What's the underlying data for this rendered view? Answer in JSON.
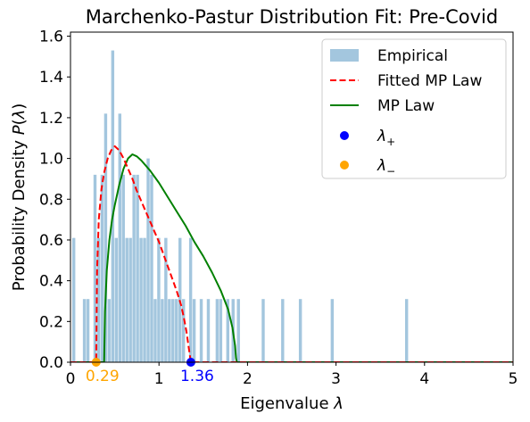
{
  "chart_data": {
    "type": "bar",
    "title": "Marchenko-Pastur Distribution Fit: Pre-Covid",
    "xlabel": "Eigenvalue λ",
    "ylabel": "Probability Density P(λ)",
    "xlim": [
      0,
      5
    ],
    "ylim": [
      0,
      1.62
    ],
    "x_ticks": [
      "0",
      "1",
      "2",
      "3",
      "4",
      "5"
    ],
    "y_ticks": [
      "0.0",
      "0.2",
      "0.4",
      "0.6",
      "0.8",
      "1.0",
      "1.2",
      "1.4",
      "1.6"
    ],
    "grid": false,
    "legend_position": "top-right",
    "colors": {
      "empirical": "#a3c6de",
      "fitted": "#ff0000",
      "mp": "#008000",
      "lambda_plus": "#0000ff",
      "lambda_minus": "#ffa500"
    },
    "legend": [
      {
        "label": "Empirical",
        "kind": "patch",
        "color": "#a3c6de"
      },
      {
        "label": "Fitted MP Law",
        "kind": "dashed",
        "color": "#ff0000"
      },
      {
        "label": "MP Law",
        "kind": "solid",
        "color": "#008000"
      },
      {
        "label": "λ+",
        "base": "λ",
        "sub": "+",
        "kind": "dot",
        "color": "#0000ff"
      },
      {
        "label": "λ−",
        "base": "λ",
        "sub": "−",
        "kind": "dot",
        "color": "#ffa500"
      }
    ],
    "bin_width": 0.0405,
    "histogram": [
      [
        0.02,
        0.61
      ],
      [
        0.14,
        0.31
      ],
      [
        0.18,
        0.31
      ],
      [
        0.26,
        0.92
      ],
      [
        0.3,
        0.61
      ],
      [
        0.34,
        0.92
      ],
      [
        0.38,
        1.22
      ],
      [
        0.42,
        0.31
      ],
      [
        0.46,
        1.53
      ],
      [
        0.5,
        0.61
      ],
      [
        0.54,
        1.22
      ],
      [
        0.58,
        0.92
      ],
      [
        0.62,
        0.61
      ],
      [
        0.66,
        0.61
      ],
      [
        0.7,
        0.92
      ],
      [
        0.74,
        0.92
      ],
      [
        0.78,
        0.61
      ],
      [
        0.82,
        0.61
      ],
      [
        0.86,
        1.0
      ],
      [
        0.9,
        0.92
      ],
      [
        0.94,
        0.31
      ],
      [
        0.98,
        0.61
      ],
      [
        1.02,
        0.31
      ],
      [
        1.06,
        0.61
      ],
      [
        1.1,
        0.31
      ],
      [
        1.14,
        0.31
      ],
      [
        1.18,
        0.31
      ],
      [
        1.22,
        0.61
      ],
      [
        1.26,
        0.31
      ],
      [
        1.34,
        0.61
      ],
      [
        1.38,
        0.31
      ],
      [
        1.46,
        0.31
      ],
      [
        1.54,
        0.31
      ],
      [
        1.64,
        0.31
      ],
      [
        1.68,
        0.31
      ],
      [
        1.76,
        0.31
      ],
      [
        1.82,
        0.31
      ],
      [
        1.88,
        0.31
      ],
      [
        2.16,
        0.31
      ],
      [
        2.38,
        0.31
      ],
      [
        2.58,
        0.31
      ],
      [
        2.94,
        0.31
      ],
      [
        3.78,
        0.31
      ]
    ],
    "fitted_mp_law": {
      "lambda_minus": 0.29,
      "lambda_plus": 1.36,
      "points": [
        [
          0.0,
          0.0
        ],
        [
          0.29,
          0.0
        ],
        [
          0.3,
          0.45
        ],
        [
          0.32,
          0.7
        ],
        [
          0.35,
          0.85
        ],
        [
          0.38,
          0.93
        ],
        [
          0.42,
          1.0
        ],
        [
          0.46,
          1.04
        ],
        [
          0.5,
          1.06
        ],
        [
          0.55,
          1.04
        ],
        [
          0.6,
          1.0
        ],
        [
          0.65,
          0.95
        ],
        [
          0.7,
          0.9
        ],
        [
          0.75,
          0.84
        ],
        [
          0.8,
          0.79
        ],
        [
          0.85,
          0.74
        ],
        [
          0.9,
          0.69
        ],
        [
          0.95,
          0.64
        ],
        [
          1.0,
          0.59
        ],
        [
          1.05,
          0.53
        ],
        [
          1.1,
          0.47
        ],
        [
          1.15,
          0.41
        ],
        [
          1.2,
          0.35
        ],
        [
          1.25,
          0.28
        ],
        [
          1.28,
          0.22
        ],
        [
          1.31,
          0.15
        ],
        [
          1.33,
          0.09
        ],
        [
          1.35,
          0.03
        ],
        [
          1.36,
          0.0
        ],
        [
          5.0,
          0.0
        ]
      ]
    },
    "mp_law": {
      "points": [
        [
          0.0,
          0.0
        ],
        [
          0.38,
          0.0
        ],
        [
          0.39,
          0.25
        ],
        [
          0.41,
          0.45
        ],
        [
          0.44,
          0.6
        ],
        [
          0.47,
          0.7
        ],
        [
          0.5,
          0.77
        ],
        [
          0.55,
          0.87
        ],
        [
          0.6,
          0.95
        ],
        [
          0.65,
          1.0
        ],
        [
          0.7,
          1.02
        ],
        [
          0.75,
          1.01
        ],
        [
          0.8,
          0.99
        ],
        [
          0.9,
          0.94
        ],
        [
          1.0,
          0.88
        ],
        [
          1.1,
          0.81
        ],
        [
          1.2,
          0.74
        ],
        [
          1.3,
          0.67
        ],
        [
          1.4,
          0.59
        ],
        [
          1.5,
          0.52
        ],
        [
          1.6,
          0.44
        ],
        [
          1.7,
          0.35
        ],
        [
          1.78,
          0.26
        ],
        [
          1.83,
          0.17
        ],
        [
          1.86,
          0.08
        ],
        [
          1.87,
          0.02
        ],
        [
          1.88,
          0.0
        ],
        [
          5.0,
          0.0
        ]
      ]
    },
    "markers": [
      {
        "name": "λ+",
        "x": 1.36,
        "y": 0.0,
        "color": "#0000ff",
        "label": "1.36"
      },
      {
        "name": "λ−",
        "x": 0.29,
        "y": 0.0,
        "color": "#ffa500",
        "label": "0.29"
      }
    ]
  }
}
